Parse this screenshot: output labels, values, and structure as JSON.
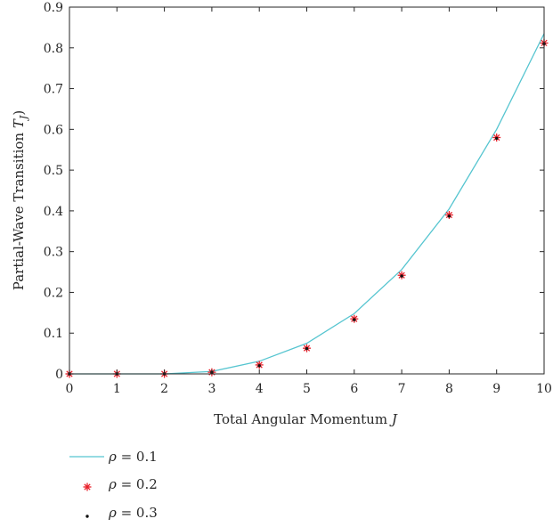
{
  "chart_data": {
    "type": "line",
    "xlabel": "Total Angular Momentum J",
    "ylabel": "Partial-Wave Transition T_J)",
    "xlim": [
      0,
      10
    ],
    "ylim": [
      0,
      0.9
    ],
    "xticks": [
      "0",
      "1",
      "2",
      "3",
      "4",
      "5",
      "6",
      "7",
      "8",
      "9",
      "10"
    ],
    "yticks": [
      "0",
      "0.1",
      "0.2",
      "0.3",
      "0.4",
      "0.5",
      "0.6",
      "0.7",
      "0.8",
      "0.9"
    ],
    "grid": false,
    "legend_position": "below",
    "x": [
      0,
      1,
      2,
      3,
      4,
      5,
      6,
      7,
      8,
      9,
      10
    ],
    "series": [
      {
        "name": "ρ = 0.1",
        "style": "line",
        "color": "#56c5d0",
        "values": [
          0.0,
          0.0,
          0.0,
          0.006,
          0.031,
          0.075,
          0.148,
          0.256,
          0.405,
          0.6,
          0.835
        ]
      },
      {
        "name": "ρ = 0.2",
        "style": "asterisk",
        "color": "#e8202a",
        "values": [
          0.0,
          0.0,
          0.0,
          0.004,
          0.022,
          0.063,
          0.135,
          0.242,
          0.39,
          0.58,
          0.812
        ]
      },
      {
        "name": "ρ = 0.3",
        "style": "dot",
        "color": "#111111",
        "values": [
          0.0,
          0.0,
          0.0,
          0.004,
          0.02,
          0.062,
          0.133,
          0.24,
          0.387,
          0.578,
          0.81
        ]
      }
    ]
  }
}
